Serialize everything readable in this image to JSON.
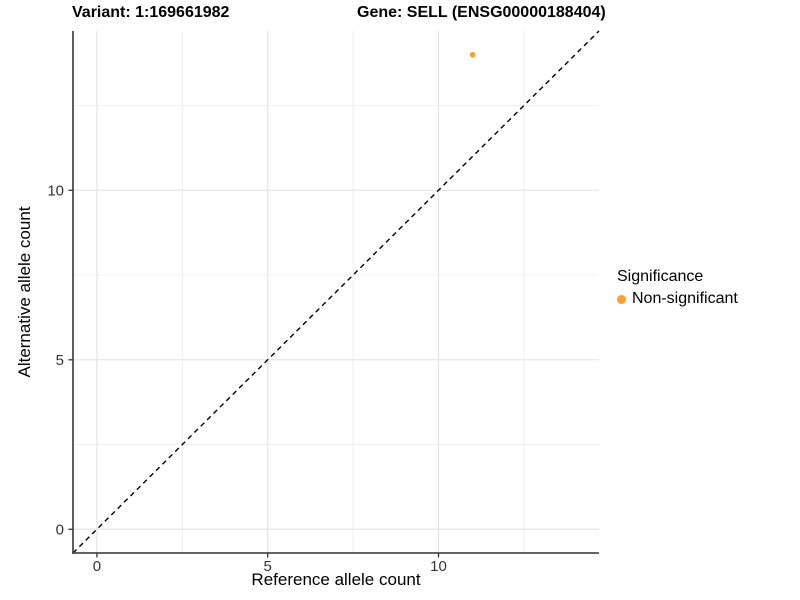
{
  "titles": {
    "variant": "Variant: 1:169661982",
    "gene": "Gene: SELL (ENSG00000188404)"
  },
  "legend": {
    "title": "Significance",
    "items": [
      {
        "label": "Non-significant",
        "color": "#FAA032"
      }
    ]
  },
  "chart_data": {
    "type": "scatter",
    "title": "Variant: 1:169661982  Gene: SELL (ENSG00000188404)",
    "xlabel": "Reference allele count",
    "ylabel": "Alternative allele count",
    "xlim": [
      -0.7,
      14.7
    ],
    "ylim": [
      -0.7,
      14.7
    ],
    "x_ticks": [
      0,
      5,
      10
    ],
    "y_ticks": [
      0,
      5,
      10
    ],
    "minor_ticks": [
      2.5,
      7.5,
      12.5
    ],
    "grid": true,
    "legend_position": "right",
    "series": [
      {
        "name": "Non-significant",
        "color": "#FAA032",
        "points": [
          {
            "x": 11,
            "y": 14
          }
        ]
      }
    ],
    "point_radius": 2.8,
    "reference_line": {
      "description": "identity line y = x, dashed black",
      "from": [
        -0.7,
        -0.7
      ],
      "to": [
        14.7,
        14.7
      ],
      "dashed": true,
      "color": "#000000"
    },
    "colors": {
      "grid_major": "#e4e4e4",
      "grid_minor": "#efefef",
      "axis_line": "#4d4d4d",
      "tick": "#333333",
      "tick_label": "#333333",
      "background": "#ffffff"
    }
  }
}
